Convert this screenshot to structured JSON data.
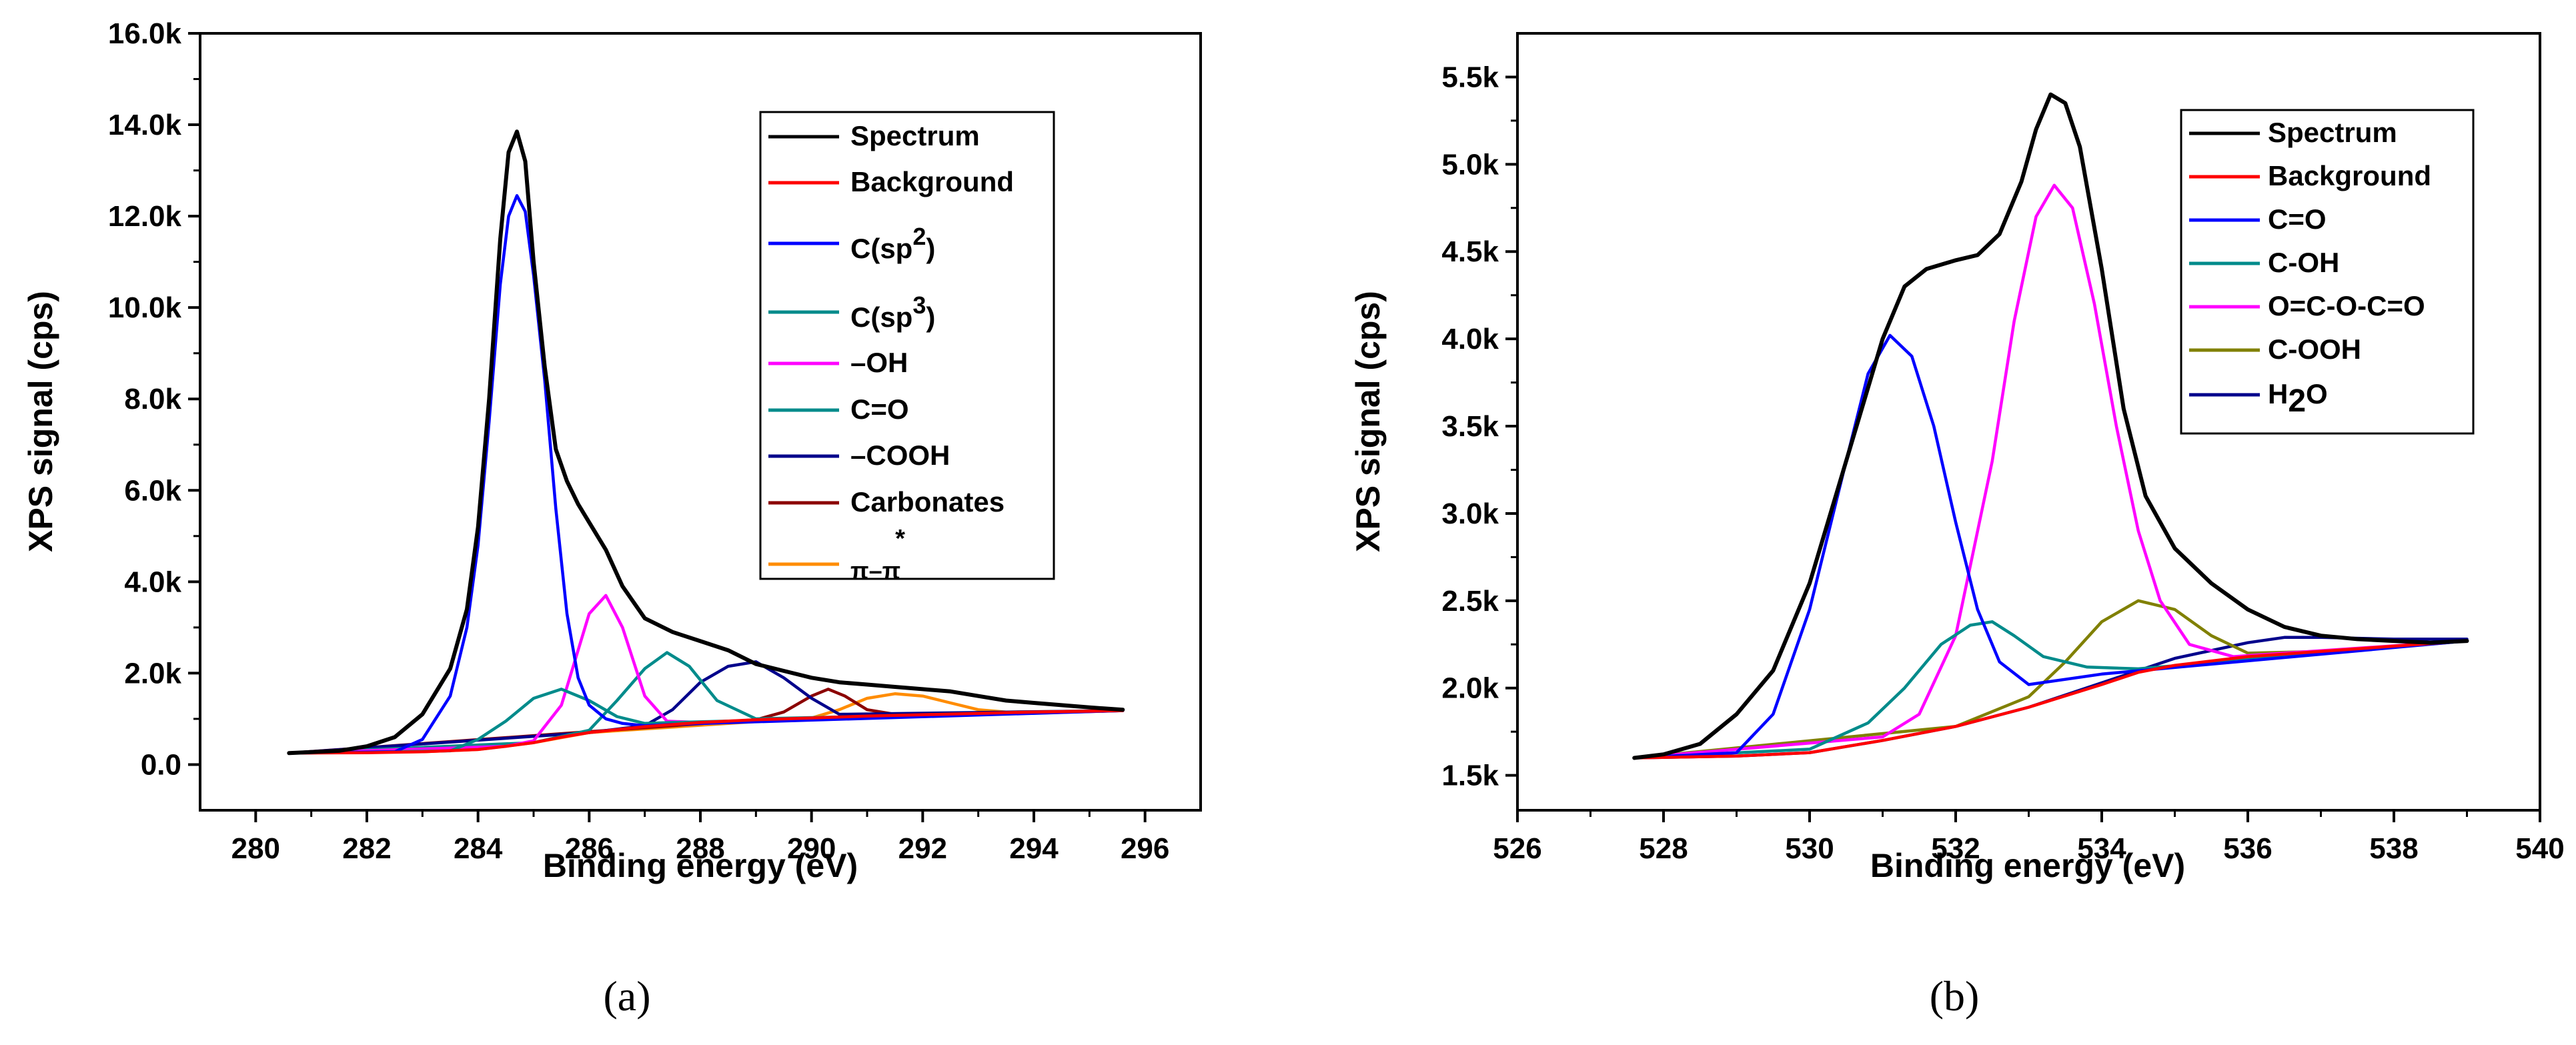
{
  "chart_data": [
    {
      "type": "line",
      "panel_label": "(a)",
      "xlabel": "Binding energy (eV)",
      "ylabel": "XPS signal (cps)",
      "xlim": [
        279,
        297
      ],
      "ylim": [
        -1000,
        16000
      ],
      "xticks": [
        280,
        282,
        284,
        286,
        288,
        290,
        292,
        294,
        296
      ],
      "yticks": [
        0,
        2000,
        4000,
        6000,
        8000,
        10000,
        12000,
        14000,
        16000
      ],
      "ytick_labels": [
        "0.0",
        "2.0k",
        "4.0k",
        "6.0k",
        "8.0k",
        "10.0k",
        "12.0k",
        "14.0k",
        "16.0k"
      ],
      "legend_position": "top-right",
      "series": [
        {
          "name": "Spectrum",
          "color": "#000000",
          "x": [
            280.6,
            281.5,
            282.0,
            282.5,
            283.0,
            283.5,
            283.8,
            284.0,
            284.2,
            284.4,
            284.55,
            284.7,
            284.85,
            285.0,
            285.2,
            285.4,
            285.6,
            285.8,
            286.0,
            286.3,
            286.6,
            287.0,
            287.5,
            288.0,
            288.5,
            289.0,
            289.5,
            290.0,
            290.5,
            291.0,
            291.5,
            292.0,
            292.5,
            293.0,
            293.5,
            294.0,
            294.5,
            295.0,
            295.6
          ],
          "values": [
            250,
            300,
            400,
            600,
            1100,
            2100,
            3400,
            5200,
            8000,
            11500,
            13400,
            13850,
            13200,
            11000,
            8700,
            6900,
            6200,
            5700,
            5300,
            4700,
            3900,
            3200,
            2900,
            2700,
            2500,
            2200,
            2050,
            1900,
            1800,
            1750,
            1700,
            1650,
            1600,
            1500,
            1400,
            1350,
            1300,
            1250,
            1200
          ]
        },
        {
          "name": "Background",
          "color": "#ff0000",
          "x": [
            280.6,
            282.0,
            283.0,
            284.0,
            284.5,
            285.0,
            285.5,
            286.0,
            287.0,
            288.0,
            289.0,
            290.0,
            291.0,
            292.0,
            293.0,
            294.0,
            295.6
          ],
          "values": [
            250,
            260,
            280,
            330,
            400,
            480,
            600,
            700,
            830,
            920,
            980,
            1020,
            1060,
            1090,
            1120,
            1150,
            1180
          ]
        },
        {
          "name": "C(sp2)",
          "color": "#0000ff",
          "x": [
            280.6,
            282.5,
            283.0,
            283.5,
            283.8,
            284.0,
            284.2,
            284.4,
            284.55,
            284.7,
            284.85,
            285.0,
            285.2,
            285.4,
            285.6,
            285.8,
            286.0,
            286.3,
            286.6,
            287.0,
            287.5,
            295.6
          ],
          "values": [
            250,
            280,
            550,
            1500,
            3000,
            4800,
            7500,
            10500,
            12000,
            12450,
            12100,
            10700,
            8400,
            5600,
            3300,
            1900,
            1300,
            1000,
            900,
            850,
            880,
            1180
          ]
        },
        {
          "name": "C(sp3)",
          "color": "#008b8b",
          "x": [
            280.6,
            283.5,
            284.0,
            284.5,
            285.0,
            285.5,
            286.0,
            286.5,
            287.0,
            287.5,
            295.6
          ],
          "values": [
            250,
            300,
            550,
            950,
            1450,
            1650,
            1400,
            1050,
            900,
            920,
            1180
          ]
        },
        {
          "name": "-OH",
          "color": "#ff00ff",
          "x": [
            280.6,
            284.5,
            285.0,
            285.5,
            285.8,
            286.0,
            286.3,
            286.6,
            287.0,
            287.4,
            288.0,
            295.6
          ],
          "values": [
            250,
            400,
            520,
            1300,
            2500,
            3300,
            3700,
            3000,
            1500,
            950,
            920,
            1180
          ]
        },
        {
          "name": "C=O",
          "color": "#008b8b",
          "x": [
            280.6,
            285.0,
            286.0,
            286.5,
            287.0,
            287.4,
            287.8,
            288.3,
            289.0,
            295.6
          ],
          "values": [
            250,
            480,
            750,
            1400,
            2100,
            2450,
            2150,
            1400,
            1000,
            1180
          ]
        },
        {
          "name": "-COOH",
          "color": "#00008b",
          "x": [
            280.6,
            286.0,
            287.0,
            287.5,
            288.0,
            288.5,
            289.0,
            289.5,
            290.0,
            290.5,
            295.6
          ],
          "values": [
            250,
            700,
            850,
            1200,
            1800,
            2150,
            2250,
            1900,
            1450,
            1100,
            1180
          ]
        },
        {
          "name": "Carbonates",
          "color": "#8b0000",
          "x": [
            280.6,
            289.0,
            289.5,
            290.0,
            290.3,
            290.6,
            291.0,
            291.5,
            295.6
          ],
          "values": [
            250,
            980,
            1150,
            1500,
            1650,
            1500,
            1200,
            1100,
            1180
          ]
        },
        {
          "name": "π–π*",
          "color": "#ff8c00",
          "x": [
            280.6,
            283.0,
            284.0,
            285.0,
            286.0,
            290.0,
            290.5,
            291.0,
            291.5,
            292.0,
            292.5,
            293.0,
            293.5,
            295.6
          ],
          "values": [
            250,
            280,
            330,
            480,
            700,
            1020,
            1200,
            1450,
            1550,
            1500,
            1350,
            1200,
            1150,
            1180
          ]
        }
      ]
    },
    {
      "type": "line",
      "panel_label": "(b)",
      "xlabel": "Binding energy (eV)",
      "ylabel": "XPS signal (cps)",
      "xlim": [
        526,
        540
      ],
      "ylim": [
        1300,
        5750
      ],
      "xticks": [
        526,
        528,
        530,
        532,
        534,
        536,
        538,
        540
      ],
      "yticks": [
        1500,
        2000,
        2500,
        3000,
        3500,
        4000,
        4500,
        5000,
        5500
      ],
      "ytick_labels": [
        "1.5k",
        "2.0k",
        "2.5k",
        "3.0k",
        "3.5k",
        "4.0k",
        "4.5k",
        "5.0k",
        "5.5k"
      ],
      "legend_position": "top-right",
      "series": [
        {
          "name": "Spectrum",
          "color": "#000000",
          "x": [
            527.6,
            528.0,
            528.5,
            529.0,
            529.5,
            530.0,
            530.5,
            531.0,
            531.3,
            531.6,
            532.0,
            532.3,
            532.6,
            532.9,
            533.1,
            533.3,
            533.5,
            533.7,
            534.0,
            534.3,
            534.6,
            535.0,
            535.5,
            536.0,
            536.5,
            537.0,
            537.5,
            538.0,
            538.5,
            539.0
          ],
          "values": [
            1600,
            1620,
            1680,
            1850,
            2100,
            2600,
            3300,
            4000,
            4300,
            4400,
            4450,
            4480,
            4600,
            4900,
            5200,
            5400,
            5350,
            5100,
            4400,
            3600,
            3100,
            2800,
            2600,
            2450,
            2350,
            2300,
            2280,
            2270,
            2260,
            2270
          ]
        },
        {
          "name": "Background",
          "color": "#ff0000",
          "x": [
            527.6,
            529.0,
            530.0,
            531.0,
            532.0,
            533.0,
            534.0,
            534.5,
            535.0,
            536.0,
            537.0,
            538.0,
            539.0
          ],
          "values": [
            1600,
            1610,
            1630,
            1700,
            1780,
            1890,
            2020,
            2090,
            2130,
            2180,
            2210,
            2240,
            2270
          ]
        },
        {
          "name": "C=O",
          "color": "#0000ff",
          "x": [
            527.6,
            529.0,
            529.5,
            530.0,
            530.5,
            530.8,
            531.1,
            531.4,
            531.7,
            532.0,
            532.3,
            532.6,
            533.0,
            533.5,
            534.0,
            539.0
          ],
          "values": [
            1600,
            1630,
            1850,
            2450,
            3300,
            3800,
            4020,
            3900,
            3500,
            2950,
            2450,
            2150,
            2020,
            2050,
            2080,
            2270
          ]
        },
        {
          "name": "C-OH",
          "color": "#008b8b",
          "x": [
            527.6,
            530.0,
            530.8,
            531.3,
            531.8,
            532.2,
            532.5,
            532.8,
            533.2,
            533.8,
            534.5,
            539.0
          ],
          "values": [
            1600,
            1650,
            1800,
            2000,
            2250,
            2360,
            2380,
            2300,
            2180,
            2120,
            2110,
            2270
          ]
        },
        {
          "name": "O=C-O-C=O",
          "color": "#ff00ff",
          "x": [
            527.6,
            531.0,
            531.5,
            532.0,
            532.5,
            532.8,
            533.1,
            533.35,
            533.6,
            533.9,
            534.2,
            534.5,
            534.8,
            535.2,
            535.8,
            536.5,
            539.0
          ],
          "values": [
            1600,
            1720,
            1850,
            2300,
            3300,
            4100,
            4700,
            4880,
            4750,
            4200,
            3500,
            2900,
            2500,
            2250,
            2180,
            2200,
            2270
          ]
        },
        {
          "name": "C-OOH",
          "color": "#808000",
          "x": [
            527.6,
            532.0,
            533.0,
            533.5,
            534.0,
            534.5,
            535.0,
            535.5,
            536.0,
            537.0,
            539.0
          ],
          "values": [
            1600,
            1780,
            1950,
            2150,
            2380,
            2500,
            2450,
            2300,
            2200,
            2210,
            2270
          ]
        },
        {
          "name": "H2O",
          "color": "#00008b",
          "x": [
            527.6,
            529.0,
            530.0,
            531.0,
            532.0,
            533.0,
            534.0,
            535.0,
            536.0,
            536.5,
            537.0,
            538.0,
            539.0
          ],
          "values": [
            1600,
            1610,
            1630,
            1700,
            1780,
            1890,
            2030,
            2170,
            2260,
            2290,
            2290,
            2280,
            2280
          ]
        }
      ]
    }
  ],
  "legend_a": [
    {
      "label": "Spectrum",
      "sup": "",
      "color": "#000000"
    },
    {
      "label": "Background",
      "sup": "",
      "color": "#ff0000"
    },
    {
      "label": "C(sp",
      "sup": "2",
      "tail": ")",
      "color": "#0000ff"
    },
    {
      "label": "C(sp",
      "sup": "3",
      "tail": ")",
      "color": "#008b8b"
    },
    {
      "label": "–OH",
      "sup": "",
      "color": "#ff00ff"
    },
    {
      "label": "C=O",
      "sup": "",
      "color": "#008b8b"
    },
    {
      "label": "–COOH",
      "sup": "",
      "color": "#00008b"
    },
    {
      "label": "Carbonates",
      "sup": "",
      "color": "#8b0000"
    },
    {
      "label": "π–π",
      "sup": "*",
      "color": "#ff8c00"
    }
  ],
  "legend_b": [
    {
      "label": "Spectrum",
      "sub": "",
      "color": "#000000"
    },
    {
      "label": "Background",
      "sub": "",
      "color": "#ff0000"
    },
    {
      "label": "C=O",
      "sub": "",
      "color": "#0000ff"
    },
    {
      "label": "C-OH",
      "sub": "",
      "color": "#008b8b"
    },
    {
      "label": "O=C-O-C=O",
      "sub": "",
      "color": "#ff00ff"
    },
    {
      "label": "C-OOH",
      "sub": "",
      "color": "#808000"
    },
    {
      "label": "H",
      "sub": "2",
      "tail": "O",
      "color": "#00008b"
    }
  ]
}
